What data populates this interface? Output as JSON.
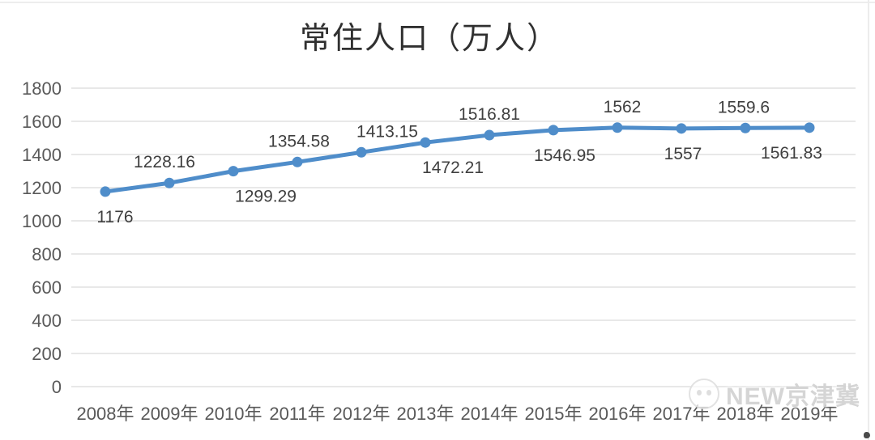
{
  "watermark": {
    "text": "NEW京津冀",
    "icon": "logo-circle-icon"
  },
  "chart_data": {
    "type": "line",
    "title": "常住人口（万人）",
    "categories": [
      "2008年",
      "2009年",
      "2010年",
      "2011年",
      "2012年",
      "2013年",
      "2014年",
      "2015年",
      "2016年",
      "2017年",
      "2018年",
      "2019年"
    ],
    "series": [
      {
        "name": "常住人口",
        "values": [
          1176,
          1228.16,
          1299.29,
          1354.58,
          1413.15,
          1472.21,
          1516.81,
          1546.95,
          1562,
          1557,
          1559.6,
          1561.83
        ]
      }
    ],
    "data_labels": [
      "1176",
      "1228.16",
      "1299.29",
      "1354.58",
      "1413.15",
      "1472.21",
      "1516.81",
      "1546.95",
      "1562",
      "1557",
      "1559.6",
      "1561.83"
    ],
    "label_positions": [
      "below",
      "above",
      "below",
      "above",
      "above",
      "below",
      "above",
      "below",
      "above",
      "below",
      "above",
      "below"
    ],
    "label_dx": [
      12,
      -6,
      40,
      2,
      32,
      34,
      0,
      14,
      6,
      2,
      -2,
      -22
    ],
    "xlabel": "",
    "ylabel": "",
    "ylim": [
      0,
      1800
    ],
    "yticks": [
      0,
      200,
      400,
      600,
      800,
      1000,
      1200,
      1400,
      1600,
      1800
    ],
    "grid": true,
    "legend": "none",
    "colors": {
      "line": "#4f8dca",
      "marker": "#4f8dca",
      "grid": "#d9d9d9",
      "axis_text": "#595959",
      "data_label_text": "#3f3f3f",
      "title_text": "#303030",
      "watermark_text": "#d2d2d2"
    }
  }
}
